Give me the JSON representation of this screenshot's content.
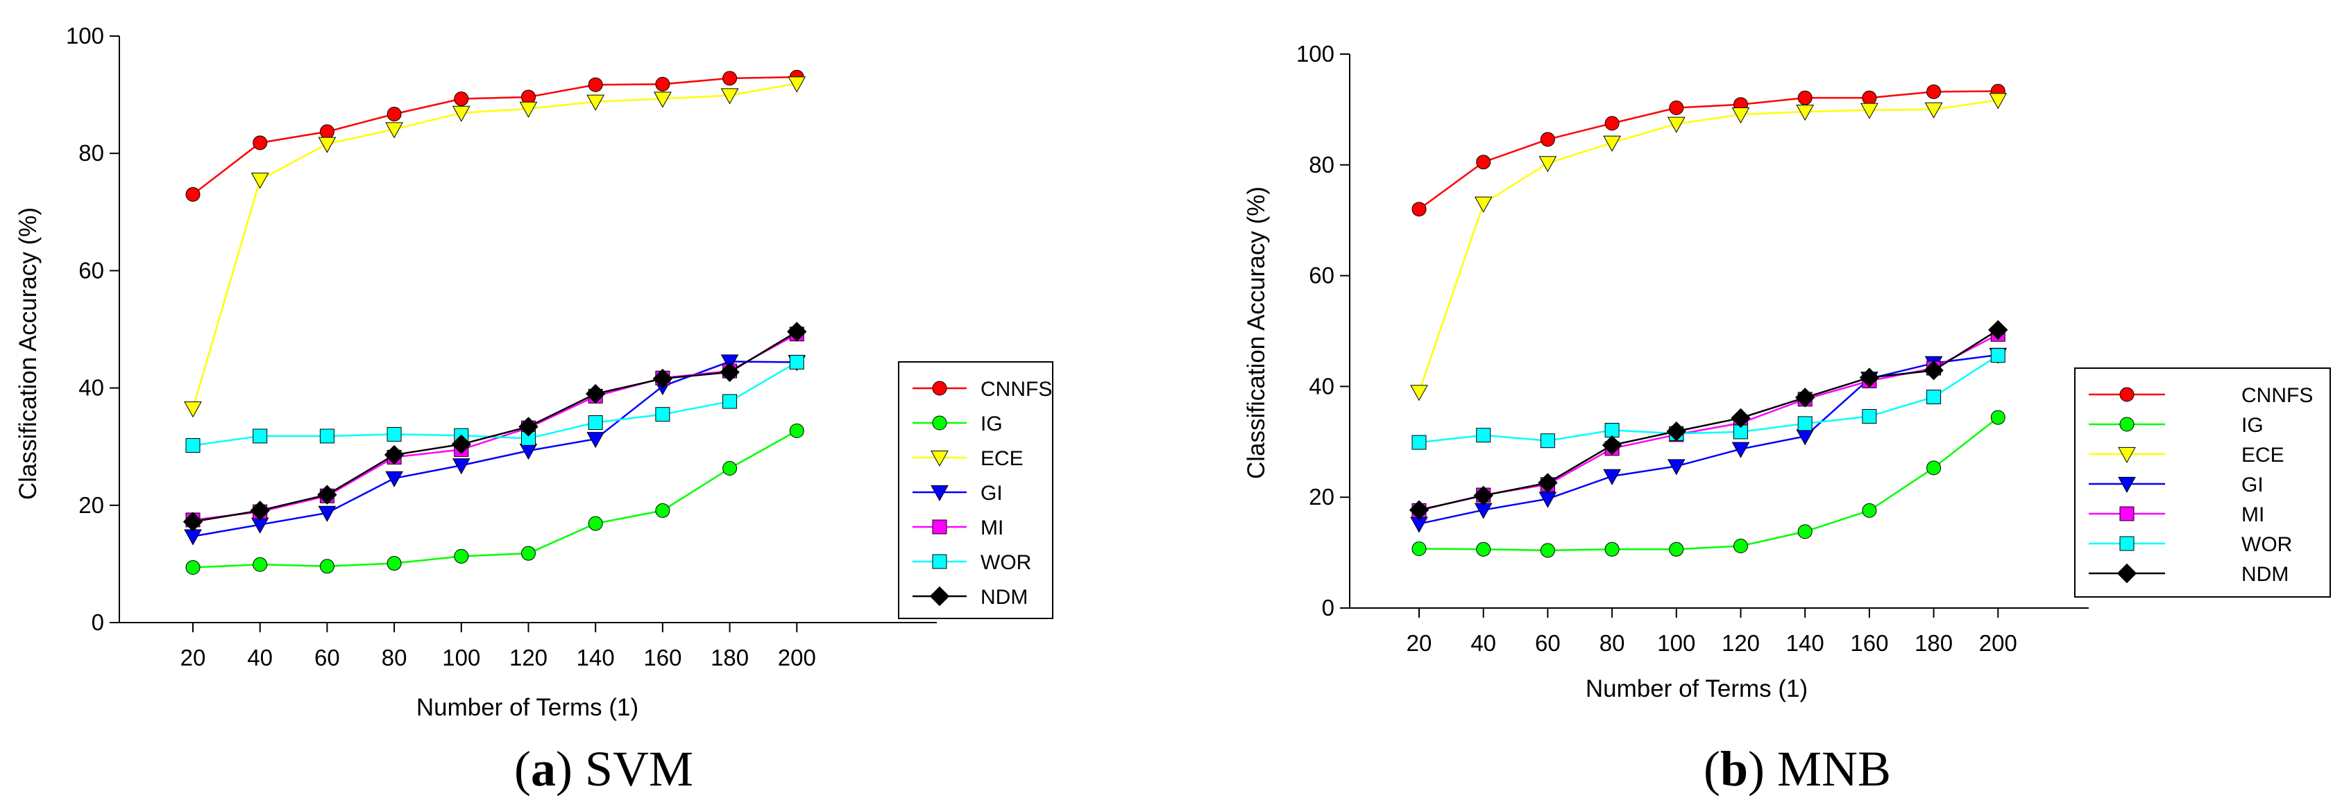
{
  "chart_data": [
    {
      "type": "line",
      "caption_label": "a",
      "caption_title": "SVM",
      "xlabel": "Number of Terms (1)",
      "ylabel": "Classification Accuracy (%)",
      "x": [
        20,
        40,
        60,
        80,
        100,
        120,
        140,
        160,
        180,
        200
      ],
      "ylim": [
        0,
        100
      ],
      "yticks": [
        0,
        20,
        40,
        60,
        80,
        100
      ],
      "legend_position": "right",
      "series": [
        {
          "name": "CNNFS",
          "color": "#ff0000",
          "marker": "circle",
          "values": [
            73,
            81.8,
            83.7,
            86.7,
            89.3,
            89.6,
            91.7,
            91.8,
            92.8,
            93
          ]
        },
        {
          "name": "IG",
          "color": "#00ff00",
          "marker": "circle",
          "values": [
            9.4,
            9.9,
            9.6,
            10.1,
            11.3,
            11.8,
            16.9,
            19.1,
            26.3,
            32.7
          ]
        },
        {
          "name": "ECE",
          "color": "#ffff00",
          "marker": "triangle-down",
          "values": [
            36.5,
            75.5,
            81.6,
            84.1,
            86.9,
            87.6,
            88.8,
            89.3,
            89.9,
            91.9
          ]
        },
        {
          "name": "GI",
          "color": "#0000ff",
          "marker": "triangle-down",
          "values": [
            14.7,
            16.7,
            18.7,
            24.6,
            26.8,
            29.3,
            31.3,
            40.3,
            44.5,
            44.4
          ]
        },
        {
          "name": "MI",
          "color": "#ff00ff",
          "marker": "square",
          "values": [
            17.5,
            18.9,
            21.6,
            28.2,
            29.5,
            33.2,
            38.6,
            41.7,
            42.9,
            49.2
          ]
        },
        {
          "name": "WOR",
          "color": "#00ffff",
          "marker": "square",
          "values": [
            30.2,
            31.8,
            31.8,
            32.1,
            31.9,
            31.4,
            34.1,
            35.5,
            37.7,
            44.4
          ]
        },
        {
          "name": "NDM",
          "color": "#000000",
          "marker": "diamond",
          "values": [
            17.2,
            19.1,
            21.8,
            28.6,
            30.4,
            33.4,
            39,
            41.6,
            42.7,
            49.6
          ]
        }
      ]
    },
    {
      "type": "line",
      "caption_label": "b",
      "caption_title": "MNB",
      "xlabel": "Number of Terms (1)",
      "ylabel": "Classification Accuracy (%)",
      "x": [
        20,
        40,
        60,
        80,
        100,
        120,
        140,
        160,
        180,
        200
      ],
      "ylim": [
        0,
        100
      ],
      "yticks": [
        0,
        20,
        40,
        60,
        80,
        100
      ],
      "legend_position": "right",
      "series": [
        {
          "name": "CNNFS",
          "color": "#ff0000",
          "marker": "circle",
          "values": [
            72,
            80.5,
            84.6,
            87.5,
            90.3,
            90.9,
            92.1,
            92.1,
            93.2,
            93.3
          ]
        },
        {
          "name": "IG",
          "color": "#00ff00",
          "marker": "circle",
          "values": [
            10.7,
            10.6,
            10.4,
            10.6,
            10.6,
            11.2,
            13.8,
            17.6,
            25.3,
            34.4
          ]
        },
        {
          "name": "ECE",
          "color": "#ffff00",
          "marker": "triangle-down",
          "values": [
            39,
            73,
            80.3,
            84,
            87.4,
            89.1,
            89.6,
            89.9,
            90,
            91.7
          ]
        },
        {
          "name": "GI",
          "color": "#0000ff",
          "marker": "triangle-down",
          "values": [
            15.2,
            17.7,
            19.7,
            23.8,
            25.6,
            28.7,
            31,
            41.4,
            44.2,
            45.7
          ]
        },
        {
          "name": "MI",
          "color": "#ff00ff",
          "marker": "square",
          "values": [
            17.6,
            20.4,
            22.3,
            28.8,
            31.3,
            33.4,
            37.7,
            41,
            43.3,
            49.4
          ]
        },
        {
          "name": "WOR",
          "color": "#00ffff",
          "marker": "square",
          "values": [
            29.9,
            31.2,
            30.2,
            32.1,
            31.5,
            31.8,
            33.3,
            34.6,
            38.1,
            45.6
          ]
        },
        {
          "name": "NDM",
          "color": "#000000",
          "marker": "diamond",
          "values": [
            17.7,
            20.3,
            22.6,
            29.4,
            31.9,
            34.3,
            38,
            41.6,
            42.9,
            50.2
          ]
        }
      ]
    }
  ]
}
